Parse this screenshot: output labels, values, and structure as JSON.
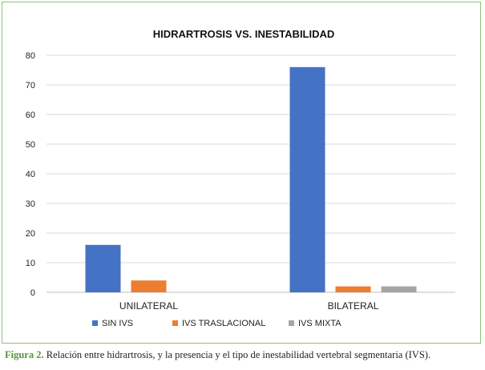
{
  "chart_data": {
    "type": "bar",
    "title": "HIDRARTROSIS VS. INESTABILIDAD",
    "categories": [
      "UNILATERAL",
      "BILATERAL"
    ],
    "series": [
      {
        "name": "SIN IVS",
        "values": [
          16,
          76
        ],
        "color": "#4472c4"
      },
      {
        "name": "IVS TRASLACIONAL",
        "values": [
          4,
          2
        ],
        "color": "#ed7d31"
      },
      {
        "name": "IVS MIXTA",
        "values": [
          0,
          2
        ],
        "color": "#a5a5a5"
      }
    ],
    "ylim": [
      0,
      80
    ],
    "yticks": [
      0,
      10,
      20,
      30,
      40,
      50,
      60,
      70,
      80
    ],
    "grid": true,
    "legend": "bottom"
  },
  "caption": {
    "label": "Figura 2.",
    "text": " Relación entre hidrartrosis, y la presencia y el tipo de inestabilidad vertebral segmentaria (IVS)."
  }
}
